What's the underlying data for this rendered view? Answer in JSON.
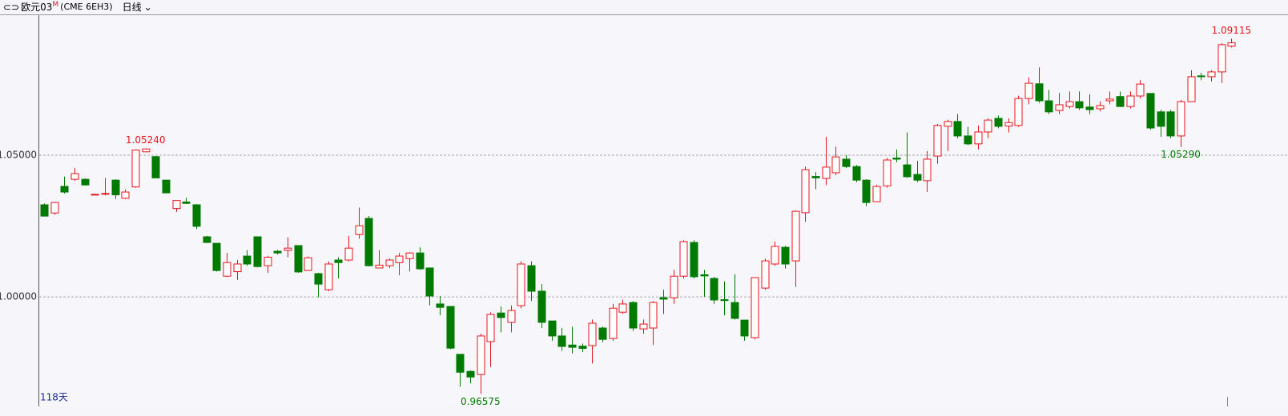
{
  "header": {
    "instrument": "欧元03",
    "marker": "M",
    "code": "(CME 6EH3)",
    "period": "日线"
  },
  "chart_data": {
    "type": "candlestick",
    "open": [
      1.0325,
      1.0296,
      1.039,
      1.0415,
      1.0415,
      1.036,
      1.0362,
      1.0412,
      1.0348,
      1.0388,
      1.0512,
      1.0495,
      1.0412,
      1.0312,
      1.0335,
      1.0325,
      1.0212,
      1.0189,
      1.0073,
      1.0089,
      1.0144,
      1.0212,
      1.011,
      1.0161,
      1.0164,
      1.0181,
      1.0093,
      1.0082,
      1.0025,
      1.013,
      1.013,
      1.022,
      1.0277,
      1.0102,
      1.011,
      1.0121,
      1.0135,
      1.0155,
      1.0102,
      0.9975,
      0.9966,
      0.9797,
      0.9737,
      0.9726,
      0.9842,
      0.9943,
      0.991,
      0.9969,
      1.011,
      1.002,
      0.9915,
      0.9862,
      0.983,
      0.9826,
      0.9828,
      0.989,
      0.9853,
      0.9946,
      0.998,
      0.9887,
      0.989,
      0.9997,
      0.9997,
      1.0073,
      1.0192,
      1.0078,
      1.0065,
      0.999,
      0.998,
      0.9918,
      0.9856,
      1.0031,
      1.0116,
      1.0175,
      1.0127,
      1.0297,
      1.0425,
      1.0418,
      1.0438,
      1.0486,
      1.046,
      1.0412,
      1.0336,
      1.0392,
      1.049,
      1.0466,
      1.0432,
      1.041,
      1.0497,
      1.0602,
      1.0619,
      1.0568,
      1.054,
      1.0582,
      1.063,
      1.0603,
      1.0605,
      1.07,
      1.0752,
      1.0692,
      1.0658,
      1.0672,
      1.0689,
      1.067,
      1.0664,
      1.0692,
      1.0707,
      1.0672,
      1.0709,
      1.0718,
      1.0653,
      1.0653,
      1.0568,
      1.0689,
      1.078,
      1.0777,
      1.0794,
      1.0885
    ],
    "high": [
      1.033,
      1.0335,
      1.0425,
      1.0455,
      1.0418,
      1.0362,
      1.042,
      1.0415,
      1.038,
      1.052,
      1.0524,
      1.0497,
      1.0412,
      1.034,
      1.035,
      1.0327,
      1.0215,
      1.019,
      1.0155,
      1.013,
      1.0165,
      1.0212,
      1.0145,
      1.0165,
      1.021,
      1.0181,
      1.0142,
      1.0085,
      1.0125,
      1.014,
      1.0215,
      1.0315,
      1.0285,
      1.0165,
      1.0135,
      1.0155,
      1.0158,
      1.0175,
      1.0102,
      1.0003,
      0.9966,
      0.9797,
      0.974,
      0.987,
      0.9945,
      0.9966,
      0.997,
      1.0125,
      1.0125,
      1.0045,
      0.9915,
      0.989,
      0.9895,
      0.9835,
      0.992,
      0.9895,
      0.9975,
      0.999,
      0.9985,
      0.992,
      0.9985,
      1.0025,
      1.0095,
      1.02,
      1.02,
      1.0095,
      1.007,
      1.0055,
      1.008,
      0.9918,
      1.0068,
      1.0135,
      1.0195,
      1.018,
      1.0305,
      1.046,
      1.044,
      1.0565,
      1.053,
      1.05,
      1.0465,
      1.0415,
      1.0395,
      1.049,
      1.052,
      1.058,
      1.048,
      1.0515,
      1.061,
      1.0625,
      1.0645,
      1.06,
      1.0605,
      1.063,
      1.064,
      1.063,
      1.071,
      1.0775,
      1.081,
      1.073,
      1.072,
      1.0725,
      1.0725,
      1.0715,
      1.069,
      1.0725,
      1.0725,
      1.0725,
      1.0765,
      1.0718,
      1.066,
      1.066,
      1.0695,
      1.08,
      1.079,
      1.08,
      1.0895,
      1.09115
    ],
    "low": [
      1.0285,
      1.029,
      1.0365,
      1.041,
      1.0393,
      1.0358,
      1.0358,
      1.0345,
      1.0345,
      1.0385,
      1.051,
      1.042,
      1.0367,
      1.03,
      1.0328,
      1.024,
      1.019,
      1.009,
      1.007,
      1.006,
      1.011,
      1.0104,
      1.0085,
      1.015,
      1.014,
      1.0085,
      1.0093,
      0.9998,
      1.002,
      1.0065,
      1.0125,
      1.0205,
      1.0108,
      1.0102,
      1.0102,
      1.0076,
      1.009,
      1.0095,
      0.997,
      0.9935,
      0.9815,
      0.9683,
      0.9695,
      0.96575,
      0.9752,
      0.9875,
      0.9875,
      0.996,
      0.9985,
      0.989,
      0.9845,
      0.981,
      0.98,
      0.9805,
      0.9765,
      0.984,
      0.9845,
      0.994,
      0.988,
      0.987,
      0.983,
      0.994,
      0.9975,
      1.0065,
      1.0065,
      1.0,
      0.9975,
      0.9935,
      0.992,
      0.9845,
      0.985,
      1.0025,
      1.011,
      1.01,
      1.0035,
      1.0265,
      1.038,
      1.0395,
      1.043,
      1.0455,
      1.0405,
      1.032,
      1.0336,
      1.0385,
      1.0475,
      1.042,
      1.0405,
      1.037,
      1.047,
      1.0515,
      1.056,
      1.0535,
      1.052,
      1.056,
      1.0595,
      1.058,
      1.06,
      1.068,
      1.0685,
      1.0645,
      1.0645,
      1.0665,
      1.066,
      1.0645,
      1.0655,
      1.068,
      1.067,
      1.0665,
      1.07,
      1.059,
      1.0565,
      1.056,
      1.0529,
      1.0689,
      1.0765,
      1.076,
      1.0755,
      1.088
    ],
    "close": [
      1.0285,
      1.0333,
      1.037,
      1.0435,
      1.0395,
      1.0362,
      1.0365,
      1.036,
      1.037,
      1.0518,
      1.0522,
      1.042,
      1.0367,
      1.034,
      1.033,
      1.0249,
      1.0192,
      1.0093,
      1.0121,
      1.0116,
      1.0116,
      1.0107,
      1.014,
      1.0155,
      1.0172,
      1.0088,
      1.0138,
      1.0045,
      1.0116,
      1.0121,
      1.0172,
      1.0251,
      1.011,
      1.0112,
      1.013,
      1.0144,
      1.0155,
      1.0099,
      1.0003,
      0.9963,
      0.9819,
      0.9734,
      0.9717,
      0.9862,
      0.9938,
      0.9927,
      0.9952,
      1.0116,
      1.002,
      0.991,
      0.9862,
      0.9825,
      0.9822,
      0.9818,
      0.9907,
      0.985,
      0.996,
      0.9975,
      0.989,
      0.9904,
      0.998,
      0.9992,
      1.0073,
      1.0195,
      1.0071,
      1.0074,
      0.9989,
      0.9987,
      0.9924,
      0.9862,
      1.0068,
      1.0127,
      1.0178,
      1.0116,
      1.0302,
      1.0449,
      1.042,
      1.0458,
      1.0494,
      1.046,
      1.0412,
      1.0333,
      1.039,
      1.0483,
      1.0486,
      1.0424,
      1.0412,
      1.0486,
      1.0605,
      1.0619,
      1.0568,
      1.054,
      1.0582,
      1.0624,
      1.0602,
      1.0615,
      1.07,
      1.0754,
      1.0692,
      1.0653,
      1.0678,
      1.0689,
      1.0667,
      1.0661,
      1.0675,
      1.0698,
      1.0672,
      1.0709,
      1.0751,
      1.0596,
      1.0602,
      1.0568,
      1.0689,
      1.0777,
      1.0777,
      1.0794,
      1.089,
      1.0897
    ],
    "up_color": "#e8141c",
    "down_color": "#007a00",
    "ylim": [
      0.9619,
      1.0997
    ],
    "yticks": [
      {
        "value": 1.0,
        "label": "1.00000"
      },
      {
        "value": 1.05,
        "label": "1.05000"
      }
    ],
    "grid": true,
    "annotations": [
      {
        "value": 1.0524,
        "label": "1.05240"
      },
      {
        "value": 0.96575,
        "label": "0.96575"
      },
      {
        "value": 1.0529,
        "label": "1.05290"
      },
      {
        "value": 1.09115,
        "label": "1.09115"
      }
    ],
    "footer": "118天"
  }
}
